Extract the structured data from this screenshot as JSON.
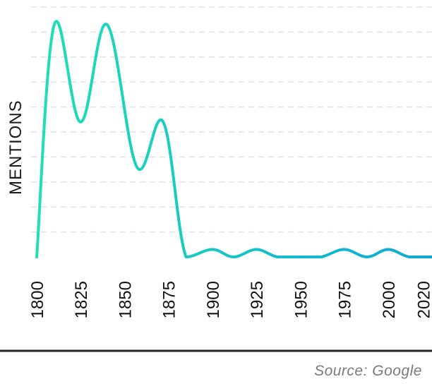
{
  "chart_data": {
    "type": "line",
    "title": "",
    "xlabel": "",
    "ylabel": "MENTIONS",
    "x": [
      1800,
      1810,
      1825,
      1840,
      1857,
      1872,
      1885,
      1900,
      1912,
      1925,
      1937,
      1950,
      1962,
      1975,
      1988,
      2000,
      2012,
      2025
    ],
    "series": [
      {
        "values": [
          0,
          9.3,
          5.4,
          9.3,
          3.6,
          5.4,
          0,
          0.3,
          0,
          0.3,
          0,
          0,
          0,
          0.3,
          0,
          0.3,
          0,
          0
        ]
      }
    ],
    "x_ticks": [
      "1800",
      "1825",
      "1850",
      "1875",
      "1900",
      "1925",
      "1950",
      "1975",
      "2000",
      "2020"
    ],
    "x_tick_values": [
      1800,
      1825,
      1850,
      1875,
      1900,
      1925,
      1950,
      1975,
      2000,
      2020
    ],
    "xlim": [
      1800,
      2025
    ],
    "ylim": [
      0,
      10
    ],
    "y_gridlines": [
      1,
      2,
      3,
      4,
      5,
      6,
      7,
      8,
      9,
      10
    ],
    "grid": "horizontal dashed",
    "line_gradient": [
      "#1ee0b4",
      "#0fa8d6"
    ],
    "colors": {
      "grid": "#e2e2e2",
      "baseline": "#222222"
    },
    "source": "Source: Google"
  }
}
